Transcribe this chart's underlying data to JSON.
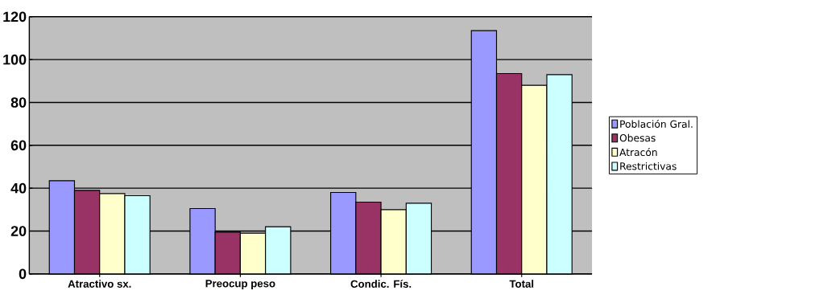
{
  "chart_data": {
    "type": "bar",
    "categories": [
      "Atractivo sx.",
      "Preocup peso",
      "Condic. Fís.",
      "Total"
    ],
    "series": [
      {
        "name": "Población Gral.",
        "color": "#9999ff",
        "values": [
          43.5,
          30.5,
          38,
          113.5
        ]
      },
      {
        "name": "Obesas",
        "color": "#993366",
        "values": [
          39,
          19.5,
          33.5,
          93.5
        ]
      },
      {
        "name": "Atracón",
        "color": "#ffffcc",
        "values": [
          37.5,
          19,
          30,
          88
        ]
      },
      {
        "name": "Restrictivas",
        "color": "#ccffff",
        "values": [
          36.5,
          22,
          33,
          93
        ]
      }
    ],
    "ylim": [
      0,
      120
    ],
    "yticks": [
      0,
      20,
      40,
      60,
      80,
      100,
      120
    ],
    "grid": "y",
    "legend": "right"
  }
}
